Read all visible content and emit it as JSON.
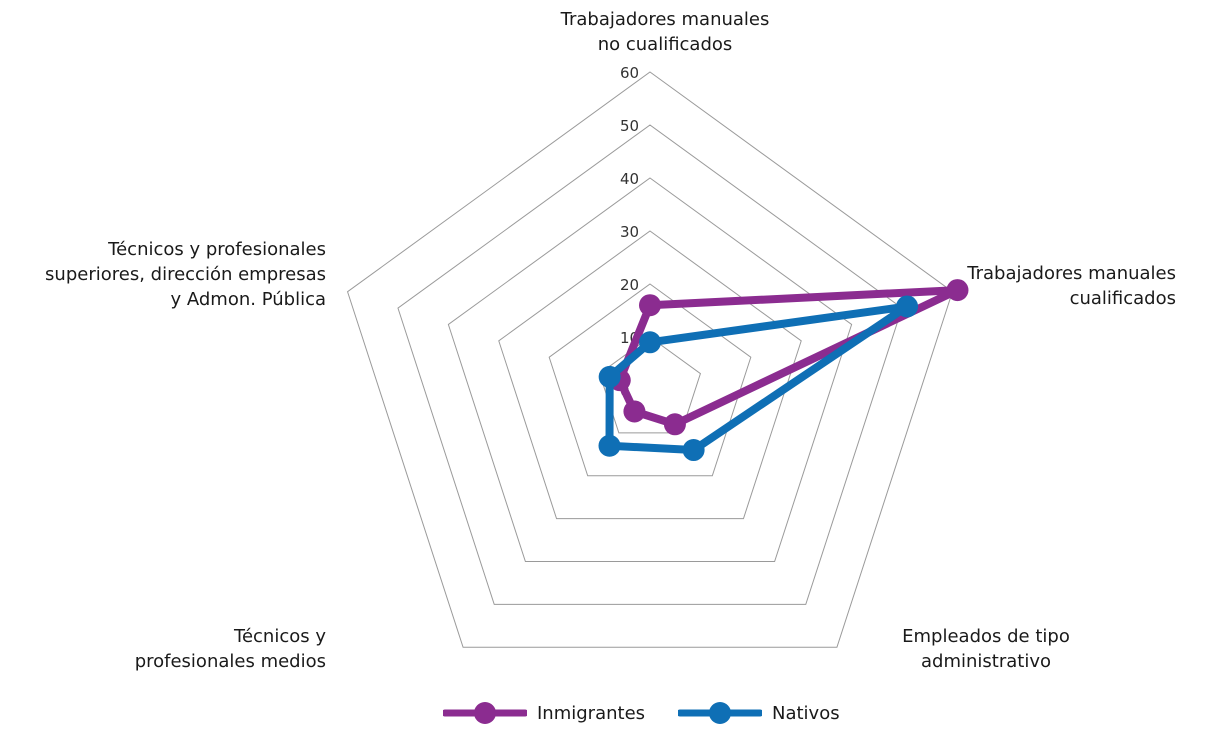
{
  "chart_data": {
    "type": "radar",
    "categories": [
      "Trabajadores manuales\nno cualificados",
      "Trabajadores manuales\ncualificados",
      "Empleados de tipo\nadministrativo",
      "Técnicos y\nprofesionales medios",
      "Técnicos y profesionales\nsuperiores, dirección empresas\ny Admon. Pública"
    ],
    "ticks": [
      "0",
      "10",
      "20",
      "30",
      "40",
      "50",
      "60"
    ],
    "rlim": [
      0,
      60
    ],
    "grid": true,
    "legend_position": "bottom",
    "series": [
      {
        "name": "Inmigrantes",
        "color": "#8B2C90",
        "values": [
          16,
          61,
          8,
          5,
          6
        ]
      },
      {
        "name": "Nativos",
        "color": "#0F6FB5",
        "values": [
          9,
          51,
          14,
          13,
          8
        ]
      }
    ]
  }
}
